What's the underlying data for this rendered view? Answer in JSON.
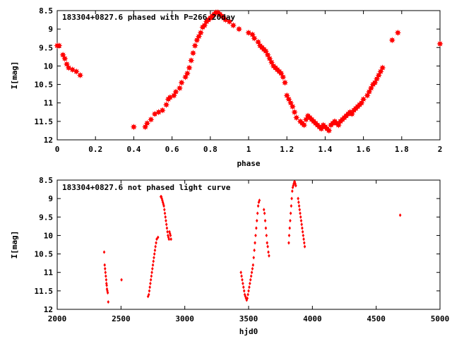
{
  "chart_data": [
    {
      "type": "scatter",
      "title": "183304+0827.6 phased with P=266.20day",
      "xlabel": "phase",
      "ylabel": "I[mag]",
      "xlim": [
        0,
        2
      ],
      "ylim": [
        12,
        8.5
      ],
      "y_inverted": true,
      "xticks": [
        "0",
        "0.2",
        "0.4",
        "0.6",
        "0.8",
        "1",
        "1.2",
        "1.4",
        "1.6",
        "1.8",
        "2"
      ],
      "yticks": [
        "8.5",
        "9",
        "9.5",
        "10",
        "10.5",
        "11",
        "11.5",
        "12"
      ],
      "marker": "star",
      "color": "#ff0000",
      "series": [
        {
          "name": "phased",
          "x": [
            0.0,
            0.01,
            0.03,
            0.04,
            0.05,
            0.06,
            0.08,
            0.1,
            0.12,
            0.4,
            0.46,
            0.47,
            0.49,
            0.51,
            0.53,
            0.55,
            0.57,
            0.58,
            0.59,
            0.61,
            0.62,
            0.64,
            0.65,
            0.67,
            0.68,
            0.69,
            0.7,
            0.71,
            0.72,
            0.73,
            0.74,
            0.75,
            0.76,
            0.77,
            0.78,
            0.79,
            0.8,
            0.81,
            0.82,
            0.83,
            0.84,
            0.85,
            0.86,
            0.87,
            0.88,
            0.9,
            0.92,
            0.95,
            1.0,
            1.02,
            1.03,
            1.05,
            1.06,
            1.07,
            1.08,
            1.09,
            1.1,
            1.11,
            1.12,
            1.13,
            1.14,
            1.15,
            1.16,
            1.17,
            1.18,
            1.19,
            1.2,
            1.21,
            1.22,
            1.23,
            1.24,
            1.25,
            1.27,
            1.28,
            1.29,
            1.3,
            1.31,
            1.32,
            1.33,
            1.34,
            1.35,
            1.36,
            1.37,
            1.38,
            1.39,
            1.4,
            1.41,
            1.42,
            1.43,
            1.44,
            1.45,
            1.46,
            1.47,
            1.48,
            1.49,
            1.5,
            1.51,
            1.52,
            1.53,
            1.54,
            1.55,
            1.56,
            1.57,
            1.58,
            1.59,
            1.6,
            1.62,
            1.63,
            1.64,
            1.65,
            1.66,
            1.67,
            1.68,
            1.69,
            1.7,
            1.75,
            1.78,
            2.0
          ],
          "y": [
            9.45,
            9.45,
            9.7,
            9.8,
            9.95,
            10.05,
            10.1,
            10.15,
            10.25,
            11.65,
            11.65,
            11.55,
            11.45,
            11.3,
            11.25,
            11.2,
            11.05,
            10.9,
            10.85,
            10.8,
            10.7,
            10.6,
            10.45,
            10.3,
            10.2,
            10.05,
            9.85,
            9.65,
            9.45,
            9.3,
            9.2,
            9.1,
            8.95,
            8.9,
            8.8,
            8.75,
            8.7,
            8.65,
            8.6,
            8.55,
            8.55,
            8.6,
            8.65,
            8.7,
            8.75,
            8.8,
            8.9,
            9.0,
            9.1,
            9.15,
            9.25,
            9.35,
            9.45,
            9.5,
            9.55,
            9.6,
            9.7,
            9.8,
            9.9,
            10.0,
            10.05,
            10.1,
            10.15,
            10.2,
            10.3,
            10.45,
            10.8,
            10.9,
            11.0,
            11.1,
            11.25,
            11.4,
            11.5,
            11.55,
            11.6,
            11.45,
            11.35,
            11.4,
            11.45,
            11.5,
            11.55,
            11.6,
            11.65,
            11.7,
            11.6,
            11.65,
            11.7,
            11.75,
            11.6,
            11.55,
            11.5,
            11.55,
            11.6,
            11.5,
            11.45,
            11.4,
            11.35,
            11.3,
            11.25,
            11.3,
            11.2,
            11.15,
            11.1,
            11.05,
            11.0,
            10.9,
            10.8,
            10.7,
            10.6,
            10.5,
            10.45,
            10.35,
            10.25,
            10.15,
            10.05,
            9.3,
            9.1,
            9.4
          ]
        }
      ]
    },
    {
      "type": "scatter",
      "title": "183304+0827.6 not phased light curve",
      "xlabel": "hjd0",
      "ylabel": "I[mag]",
      "xlim": [
        2000,
        5000
      ],
      "ylim": [
        12,
        8.5
      ],
      "y_inverted": true,
      "xticks": [
        "2000",
        "2500",
        "3000",
        "3500",
        "4000",
        "4500",
        "5000"
      ],
      "yticks": [
        "8.5",
        "9",
        "9.5",
        "10",
        "10.5",
        "11",
        "11.5",
        "12"
      ],
      "marker": "diamond",
      "color": "#ff0000",
      "series": [
        {
          "name": "light curve",
          "x": [
            2368,
            2372,
            2375,
            2378,
            2381,
            2384,
            2386,
            2388,
            2390,
            2393,
            2396,
            2400,
            2504,
            2712,
            2718,
            2722,
            2726,
            2730,
            2734,
            2738,
            2742,
            2746,
            2750,
            2754,
            2758,
            2762,
            2766,
            2770,
            2775,
            2780,
            2790,
            2812,
            2816,
            2820,
            2824,
            2828,
            2832,
            2836,
            2840,
            2844,
            2848,
            2852,
            2856,
            2860,
            2864,
            2868,
            2872,
            2876,
            2880,
            2884,
            2888,
            2892,
            3440,
            3445,
            3450,
            3455,
            3460,
            3465,
            3470,
            3475,
            3480,
            3485,
            3490,
            3495,
            3500,
            3505,
            3510,
            3515,
            3520,
            3525,
            3530,
            3535,
            3540,
            3545,
            3550,
            3555,
            3560,
            3565,
            3570,
            3575,
            3580,
            3585,
            3620,
            3625,
            3630,
            3635,
            3640,
            3645,
            3650,
            3655,
            3660,
            3815,
            3818,
            3822,
            3826,
            3830,
            3834,
            3838,
            3842,
            3846,
            3850,
            3854,
            3858,
            3862,
            3866,
            3870,
            3888,
            3892,
            3896,
            3900,
            3904,
            3908,
            3912,
            3916,
            3920,
            3924,
            3928,
            3932,
            3936,
            3940,
            4688
          ],
          "y": [
            10.45,
            10.8,
            10.9,
            11.0,
            11.1,
            11.2,
            11.3,
            11.35,
            11.45,
            11.5,
            11.55,
            11.8,
            11.2,
            11.65,
            11.6,
            11.5,
            11.4,
            11.3,
            11.2,
            11.1,
            11.0,
            10.9,
            10.8,
            10.7,
            10.6,
            10.5,
            10.4,
            10.3,
            10.2,
            10.1,
            10.05,
            8.95,
            8.95,
            9.0,
            9.05,
            9.1,
            9.15,
            9.2,
            9.3,
            9.4,
            9.5,
            9.6,
            9.7,
            9.8,
            9.9,
            10.0,
            10.05,
            10.1,
            9.9,
            9.95,
            10.0,
            10.1,
            11.0,
            11.1,
            11.2,
            11.3,
            11.4,
            11.5,
            11.6,
            11.65,
            11.7,
            11.75,
            11.7,
            11.6,
            11.5,
            11.4,
            11.3,
            11.2,
            11.1,
            11.0,
            10.9,
            10.8,
            10.6,
            10.4,
            10.2,
            10.0,
            9.8,
            9.6,
            9.4,
            9.2,
            9.1,
            9.05,
            9.3,
            9.4,
            9.6,
            9.8,
            10.0,
            10.2,
            10.3,
            10.45,
            10.55,
            10.2,
            10.0,
            9.8,
            9.6,
            9.4,
            9.2,
            9.0,
            8.8,
            8.7,
            8.65,
            8.6,
            8.55,
            8.55,
            8.6,
            8.65,
            9.0,
            9.1,
            9.2,
            9.3,
            9.4,
            9.5,
            9.6,
            9.7,
            9.8,
            9.9,
            10.0,
            10.1,
            10.2,
            10.3,
            9.45
          ]
        }
      ]
    }
  ]
}
